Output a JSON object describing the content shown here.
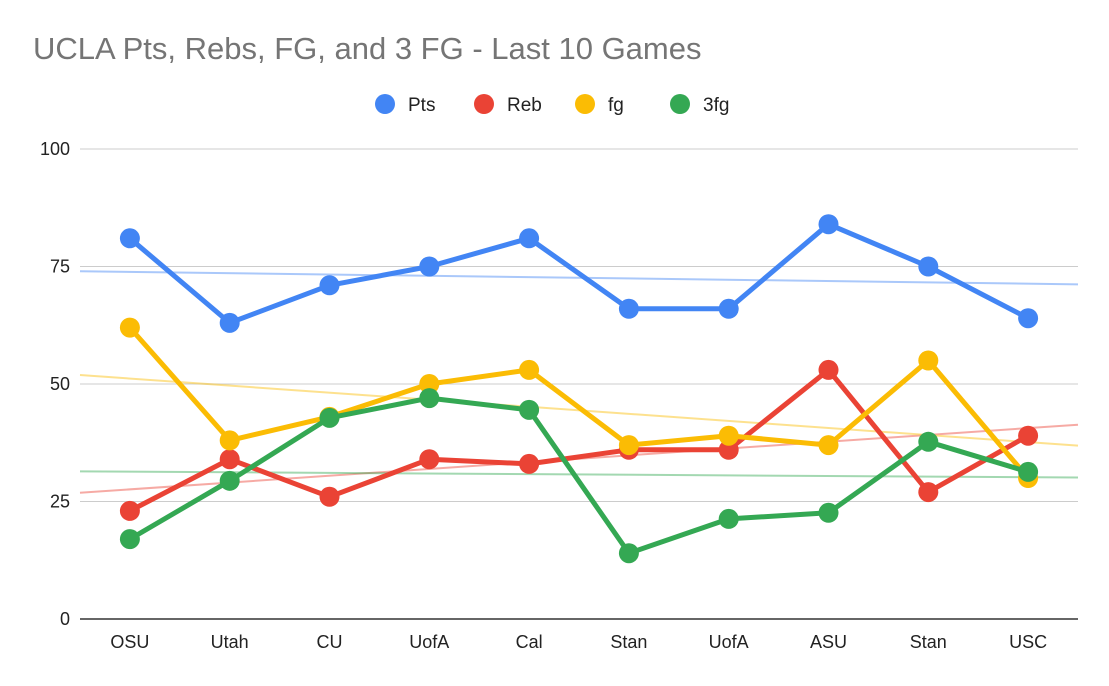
{
  "chart_data": {
    "type": "line",
    "title": "UCLA Pts, Rebs, FG, and 3 FG - Last 10 Games",
    "xlabel": "",
    "ylabel": "",
    "categories": [
      "OSU",
      "Utah",
      "CU",
      "UofA",
      "Cal",
      "Stan",
      "UofA",
      "ASU",
      "Stan",
      "USC"
    ],
    "ylim": [
      0,
      100
    ],
    "yticks": [
      "0",
      "25",
      "50",
      "75",
      "100"
    ],
    "grid": true,
    "legend_position": "top",
    "trendlines": true,
    "series": [
      {
        "name": "Pts",
        "color": "#4285f4",
        "values": [
          81,
          63,
          71,
          75,
          81,
          66,
          66,
          84,
          75,
          64
        ]
      },
      {
        "name": "Reb",
        "color": "#ea4335",
        "values": [
          23,
          34,
          26,
          34,
          33,
          36,
          36,
          53,
          27,
          39
        ]
      },
      {
        "name": "fg",
        "color": "#fbbc04",
        "values": [
          62,
          38,
          43,
          50,
          53,
          37,
          39,
          37,
          55,
          30
        ]
      },
      {
        "name": "3fg",
        "color": "#34a853",
        "values": [
          17,
          29.4,
          42.8,
          47,
          44.5,
          14,
          21.3,
          22.6,
          37.7,
          31.3
        ]
      }
    ]
  }
}
